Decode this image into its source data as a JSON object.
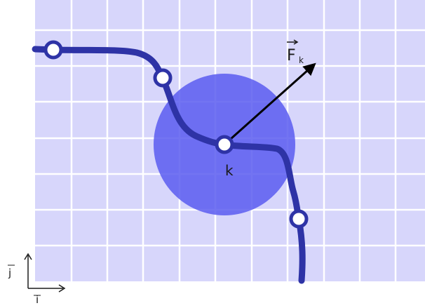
{
  "diagram": {
    "labels": {
      "force_vector": "F",
      "force_subscript": "k",
      "node": "k",
      "axis_i": "i",
      "axis_j": "j"
    },
    "colors": {
      "grid_background": "#d7d6fb",
      "grid_lines": "#ffffff",
      "curve": "#2e33a6",
      "circle": "#6a6af0",
      "node_fill": "#ffffff",
      "arrow": "#000000"
    },
    "icons": {
      "axis_arrows": "coordinate-axes-icon"
    }
  }
}
